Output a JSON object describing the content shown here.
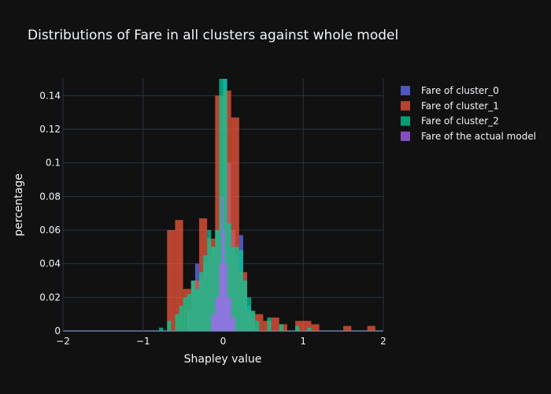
{
  "chart_data": {
    "type": "bar",
    "title": "Distributions of Fare in all clusters against whole model",
    "xlabel": "Shapley value",
    "ylabel": "percentage",
    "xlim": [
      -2,
      2
    ],
    "ylim": [
      0,
      0.15
    ],
    "x_ticks": [
      -2,
      -1,
      0,
      1,
      2
    ],
    "x_tick_labels": [
      "−2",
      "−1",
      "0",
      "1",
      "2"
    ],
    "y_ticks": [
      0,
      0.02,
      0.04,
      0.06,
      0.08,
      0.1,
      0.12,
      0.14
    ],
    "y_tick_labels": [
      "0",
      "0.02",
      "0.04",
      "0.06",
      "0.08",
      "0.1",
      "0.12",
      "0.14"
    ],
    "grid": true,
    "legend_position": "top-right",
    "bar_mode": "overlay",
    "series": [
      {
        "name": "Fare of cluster_0",
        "color": "#636efa",
        "bins": [
          [
            -0.45,
            -0.4,
            0.012
          ],
          [
            -0.4,
            -0.35,
            0.03
          ],
          [
            -0.35,
            -0.3,
            0.04
          ],
          [
            -0.3,
            -0.25,
            0.03
          ],
          [
            -0.25,
            -0.2,
            0.04
          ],
          [
            -0.2,
            -0.15,
            0.045
          ],
          [
            -0.15,
            -0.1,
            0.05
          ],
          [
            -0.1,
            -0.05,
            0.06
          ],
          [
            -0.05,
            0.0,
            0.08
          ],
          [
            0.0,
            0.05,
            0.15
          ],
          [
            0.05,
            0.1,
            0.1
          ],
          [
            0.1,
            0.15,
            0.06
          ],
          [
            0.15,
            0.2,
            0.045
          ],
          [
            0.2,
            0.25,
            0.057
          ],
          [
            0.25,
            0.3,
            0.03
          ],
          [
            0.3,
            0.35,
            0.015
          ],
          [
            0.35,
            0.4,
            0.008
          ]
        ]
      },
      {
        "name": "Fare of cluster_1",
        "color": "#ef553b",
        "bins": [
          [
            -0.7,
            -0.6,
            0.06
          ],
          [
            -0.6,
            -0.5,
            0.066
          ],
          [
            -0.5,
            -0.4,
            0.025
          ],
          [
            -0.4,
            -0.3,
            0.03
          ],
          [
            -0.3,
            -0.2,
            0.067
          ],
          [
            -0.2,
            -0.1,
            0.055
          ],
          [
            -0.1,
            0.0,
            0.14
          ],
          [
            0.0,
            0.1,
            0.143
          ],
          [
            0.1,
            0.2,
            0.127
          ],
          [
            0.2,
            0.3,
            0.035
          ],
          [
            0.3,
            0.4,
            0.012
          ],
          [
            0.4,
            0.5,
            0.01
          ],
          [
            0.5,
            0.6,
            0.006
          ],
          [
            0.6,
            0.7,
            0.008
          ],
          [
            0.7,
            0.8,
            0.004
          ],
          [
            0.9,
            1.1,
            0.006
          ],
          [
            1.1,
            1.2,
            0.004
          ],
          [
            1.5,
            1.6,
            0.003
          ],
          [
            1.8,
            1.9,
            0.003
          ]
        ]
      },
      {
        "name": "Fare of cluster_2",
        "color": "#00cc96",
        "bins": [
          [
            -0.8,
            -0.75,
            0.002
          ],
          [
            -0.7,
            -0.65,
            0.006
          ],
          [
            -0.6,
            -0.55,
            0.01
          ],
          [
            -0.55,
            -0.5,
            0.015
          ],
          [
            -0.5,
            -0.45,
            0.02
          ],
          [
            -0.45,
            -0.4,
            0.022
          ],
          [
            -0.4,
            -0.35,
            0.03
          ],
          [
            -0.35,
            -0.3,
            0.025
          ],
          [
            -0.3,
            -0.25,
            0.035
          ],
          [
            -0.25,
            -0.2,
            0.045
          ],
          [
            -0.2,
            -0.15,
            0.06
          ],
          [
            -0.15,
            -0.1,
            0.05
          ],
          [
            -0.1,
            -0.05,
            0.06
          ],
          [
            -0.05,
            0.0,
            0.15
          ],
          [
            0.0,
            0.05,
            0.15
          ],
          [
            0.05,
            0.1,
            0.064
          ],
          [
            0.1,
            0.15,
            0.05
          ],
          [
            0.15,
            0.2,
            0.05
          ],
          [
            0.2,
            0.25,
            0.048
          ],
          [
            0.25,
            0.3,
            0.03
          ],
          [
            0.3,
            0.35,
            0.02
          ],
          [
            0.35,
            0.4,
            0.012
          ],
          [
            0.4,
            0.45,
            0.006
          ],
          [
            0.55,
            0.6,
            0.008
          ],
          [
            0.7,
            0.75,
            0.004
          ],
          [
            0.9,
            0.95,
            0.003
          ],
          [
            1.05,
            1.1,
            0.002
          ]
        ]
      },
      {
        "name": "Fare of the actual model",
        "color": "#ab63fa",
        "bins": [
          [
            -0.15,
            -0.1,
            0.01
          ],
          [
            -0.1,
            -0.05,
            0.02
          ],
          [
            -0.05,
            -0.02,
            0.04
          ],
          [
            -0.02,
            0.0,
            0.08
          ],
          [
            0.0,
            0.02,
            0.06
          ],
          [
            0.02,
            0.05,
            0.04
          ],
          [
            0.05,
            0.1,
            0.02
          ],
          [
            0.1,
            0.15,
            0.008
          ]
        ]
      }
    ]
  }
}
